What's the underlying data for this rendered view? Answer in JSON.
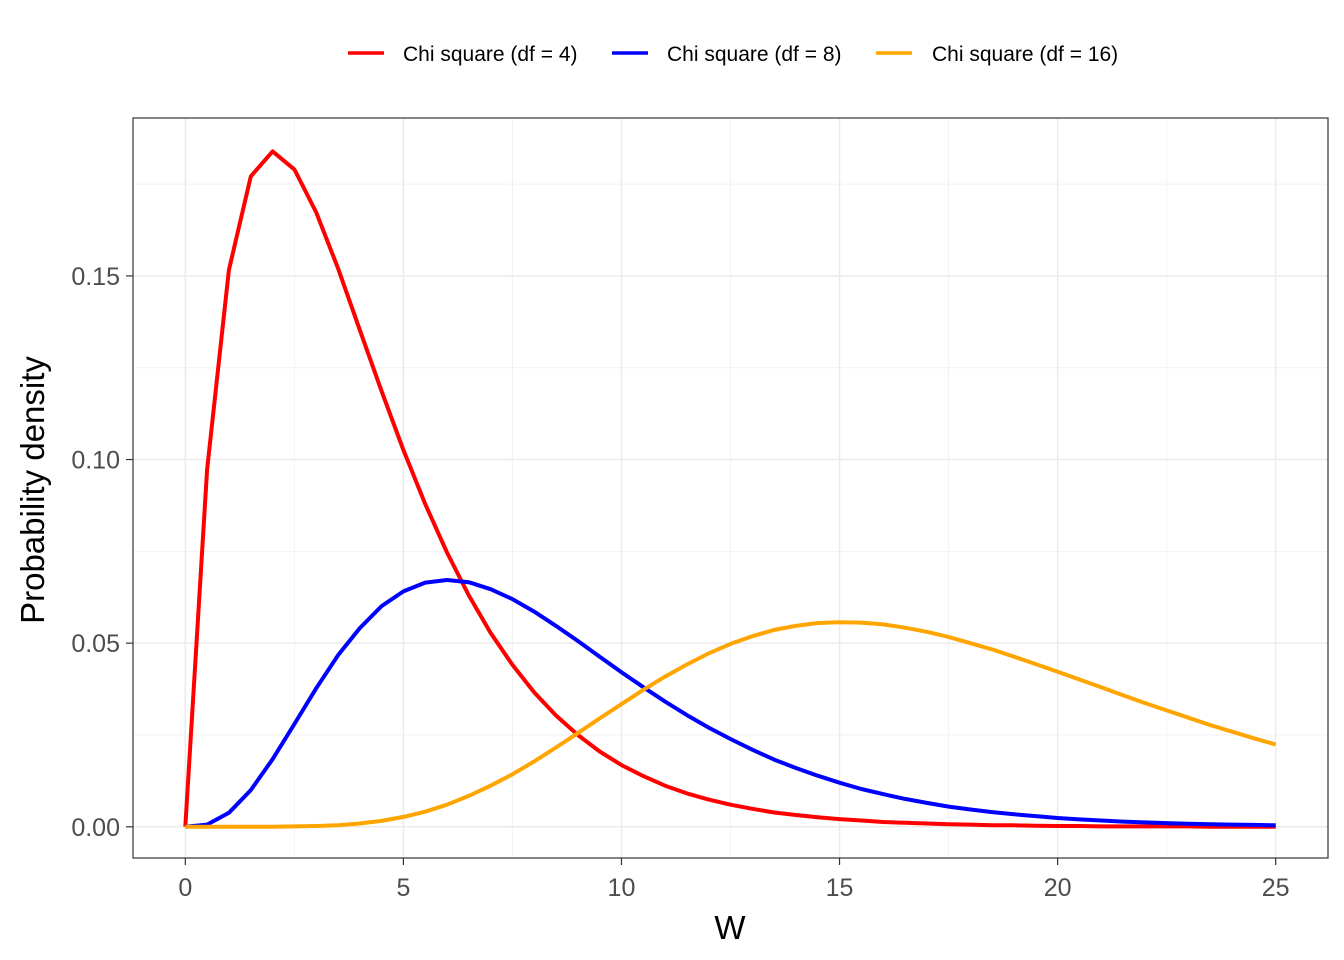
{
  "chart_data": {
    "type": "line",
    "title": "",
    "xlabel": "W",
    "ylabel": "Probability density",
    "xlim": [
      -1.2,
      26.2
    ],
    "ylim": [
      -0.0085,
      0.193
    ],
    "x_ticks": [
      0,
      5,
      10,
      15,
      20,
      25
    ],
    "x_tick_labels": [
      "0",
      "5",
      "10",
      "15",
      "20",
      "25"
    ],
    "y_ticks": [
      0.0,
      0.05,
      0.1,
      0.15
    ],
    "y_tick_labels": [
      "0.00",
      "0.05",
      "0.10",
      "0.15"
    ],
    "x_minor_ticks": [
      2.5,
      7.5,
      12.5,
      17.5,
      22.5
    ],
    "y_minor_ticks": [
      0.025,
      0.075,
      0.125,
      0.175
    ],
    "grid": true,
    "legend_position": "top",
    "x": [
      0,
      0.5,
      1,
      1.5,
      2,
      2.5,
      3,
      3.5,
      4,
      4.5,
      5,
      5.5,
      6,
      6.5,
      7,
      7.5,
      8,
      8.5,
      9,
      9.5,
      10,
      10.5,
      11,
      11.5,
      12,
      12.5,
      13,
      13.5,
      14,
      14.5,
      15,
      15.5,
      16,
      16.5,
      17,
      17.5,
      18,
      18.5,
      19,
      19.5,
      20,
      20.5,
      21,
      21.5,
      22,
      22.5,
      23,
      23.5,
      24,
      24.5,
      25
    ],
    "series": [
      {
        "name": "Chi square (df = 4)",
        "color": "#ff0000",
        "values": [
          0.0,
          0.0973,
          0.1516,
          0.1771,
          0.1839,
          0.179,
          0.1673,
          0.1521,
          0.1353,
          0.1186,
          0.1026,
          0.0879,
          0.0747,
          0.063,
          0.0528,
          0.0441,
          0.0366,
          0.0303,
          0.025,
          0.0205,
          0.0168,
          0.0138,
          0.0112,
          0.0091,
          0.0074,
          0.006,
          0.0049,
          0.0039,
          0.0032,
          0.0026,
          0.0021,
          0.0017,
          0.0013,
          0.0011,
          0.0009,
          0.0007,
          0.0006,
          0.0004,
          0.0004,
          0.0003,
          0.0002,
          0.0002,
          0.0001,
          0.0001,
          0.0001,
          0.0001,
          0.0001,
          0.0,
          0.0,
          0.0,
          0.0
        ]
      },
      {
        "name": "Chi square (df = 8)",
        "color": "#0000ff",
        "values": [
          0.0,
          0.0006,
          0.0038,
          0.01,
          0.0184,
          0.028,
          0.0377,
          0.0467,
          0.0541,
          0.0601,
          0.0641,
          0.0665,
          0.0672,
          0.0666,
          0.0647,
          0.062,
          0.0586,
          0.0547,
          0.0506,
          0.0463,
          0.0421,
          0.038,
          0.0341,
          0.0304,
          0.027,
          0.0239,
          0.021,
          0.0183,
          0.016,
          0.0139,
          0.012,
          0.0103,
          0.0089,
          0.0076,
          0.0065,
          0.0055,
          0.0047,
          0.004,
          0.0034,
          0.0029,
          0.0024,
          0.002,
          0.0017,
          0.0014,
          0.0012,
          0.001,
          0.0008,
          0.0007,
          0.0006,
          0.0005,
          0.0004
        ]
      },
      {
        "name": "Chi square (df = 16)",
        "color": "#ffa500",
        "values": [
          0.0,
          0.0,
          0.0,
          0.0,
          0.0,
          0.0001,
          0.0002,
          0.0004,
          0.0009,
          0.0016,
          0.0027,
          0.0041,
          0.006,
          0.0084,
          0.0112,
          0.0143,
          0.0178,
          0.0216,
          0.0255,
          0.0295,
          0.0334,
          0.0373,
          0.0409,
          0.0442,
          0.0472,
          0.0498,
          0.0519,
          0.0536,
          0.0547,
          0.0555,
          0.0557,
          0.0556,
          0.0551,
          0.0542,
          0.0531,
          0.0517,
          0.05,
          0.0483,
          0.0463,
          0.0443,
          0.0422,
          0.0401,
          0.038,
          0.0358,
          0.0337,
          0.0317,
          0.0297,
          0.0277,
          0.0259,
          0.0241,
          0.0224
        ]
      }
    ]
  }
}
